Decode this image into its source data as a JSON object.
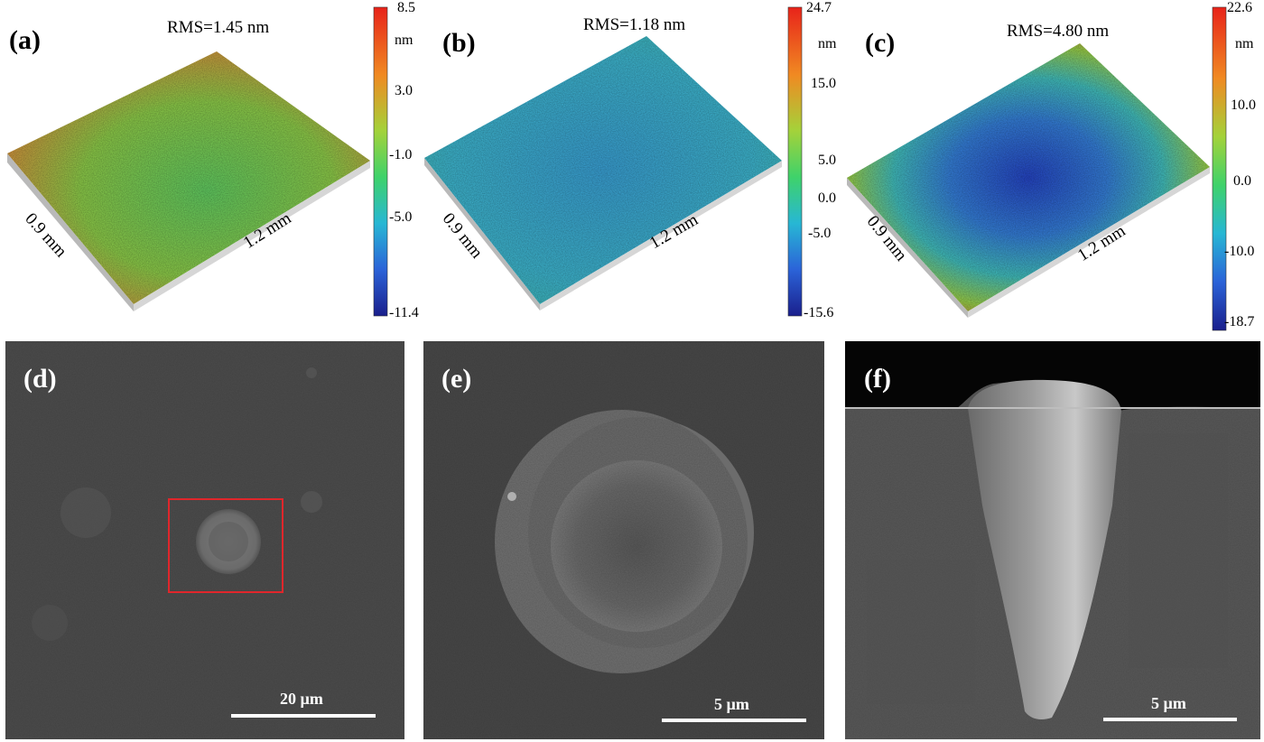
{
  "panels_top": [
    {
      "label": "(a)",
      "rms": "RMS=1.45 nm",
      "width_label": "0.9 mm",
      "length_label": "1.2 mm",
      "cbar_max": "8.5",
      "cbar_unit": "nm",
      "cbar_ticks": [
        "3.0",
        "-1.0",
        "-5.0"
      ],
      "cbar_min": "-11.4"
    },
    {
      "label": "(b)",
      "rms": "RMS=1.18 nm",
      "width_label": "0.9 mm",
      "length_label": "1.2 mm",
      "cbar_max": "24.7",
      "cbar_unit": "nm",
      "cbar_ticks": [
        "15.0",
        "5.0",
        "0.0",
        "-5.0"
      ],
      "cbar_min": "-15.6"
    },
    {
      "label": "(c)",
      "rms": "RMS=4.80 nm",
      "width_label": "0.9 mm",
      "length_label": "1.2 mm",
      "cbar_max": "22.6",
      "cbar_unit": "nm",
      "cbar_ticks": [
        "10.0",
        "0.0",
        "-10.0"
      ],
      "cbar_min": "-18.7"
    }
  ],
  "panels_bottom": [
    {
      "label": "(d)",
      "scale": "20 µm"
    },
    {
      "label": "(e)",
      "scale": "5 µm"
    },
    {
      "label": "(f)",
      "scale": "5 µm"
    }
  ],
  "colors": {
    "jet_red": "#e8231a",
    "jet_green": "#4fd24a",
    "jet_blue": "#2f5fd8",
    "sem_gray": "#4d4d4d",
    "highlight_box": "#e0262b"
  }
}
